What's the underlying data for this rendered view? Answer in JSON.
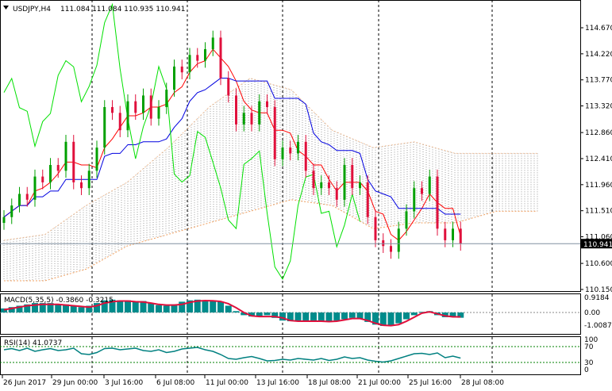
{
  "header": {
    "symbol": "USDJPY,H4",
    "ohlc": "111.084 111.084 110.935 110.941"
  },
  "colors": {
    "bull": "#00a000",
    "bear": "#e0103c",
    "tenkan": "#ff0000",
    "kijun": "#0000e0",
    "chikou": "#00e000",
    "cloud": "#999999",
    "span": "#f0a060",
    "macd_hist": "#008b8b",
    "macd_signal": "#e0103c",
    "rsi": "#008080",
    "level": "#008000"
  },
  "chart_data": [
    {
      "type": "candlestick",
      "title": "USDJPY,H4",
      "price_ticks": [
        "114.670",
        "114.220",
        "113.770",
        "113.320",
        "112.860",
        "112.410",
        "111.960",
        "111.510",
        "111.060",
        "110.600",
        "110.150"
      ],
      "ylim": [
        110.15,
        114.67
      ],
      "current_price": "110.941",
      "date_ticks": [
        "26 Jun 2017",
        "29 Jun 00:00",
        "3 Jul 16:00",
        "6 Jul 08:00",
        "11 Jul 00:00",
        "13 Jul 16:00",
        "18 Jul 08:00",
        "21 Jul 00:00",
        "25 Jul 16:00",
        "28 Jul 08:00"
      ],
      "close": [
        111.4,
        111.6,
        111.8,
        111.7,
        112.1,
        112.0,
        112.3,
        112.2,
        112.7,
        112.0,
        111.9,
        112.2,
        112.6,
        113.3,
        113.2,
        112.9,
        113.4,
        113.2,
        113.5,
        113.1,
        113.3,
        113.6,
        114.0,
        113.9,
        114.2,
        114.1,
        114.3,
        114.5,
        113.8,
        113.5,
        113.0,
        113.2,
        113.0,
        113.4,
        113.3,
        112.4,
        112.6,
        112.5,
        112.7,
        112.2,
        111.9,
        112.0,
        111.9,
        111.7,
        112.3,
        111.9,
        112.0,
        111.4,
        111.0,
        110.9,
        110.8,
        111.2,
        111.5,
        111.9,
        111.8,
        112.1,
        111.2,
        111.0,
        111.2,
        110.94
      ],
      "cloud_upper": [
        111.0,
        111.1,
        111.6,
        112.0,
        112.6,
        113.3,
        113.8,
        113.6,
        112.9,
        112.6,
        112.7,
        112.5,
        112.5,
        112.5
      ],
      "cloud_lower": [
        110.3,
        110.3,
        110.5,
        110.9,
        111.1,
        111.3,
        111.5,
        111.7,
        111.6,
        111.2,
        111.3,
        111.3,
        111.5,
        111.5
      ]
    },
    {
      "type": "bar",
      "title": "MACD(5,35,5) -0.3860 -0.3215",
      "y_ticks": [
        "0.9184",
        "0.00",
        "-1.0087"
      ],
      "ylim": [
        -1.0087,
        0.9184
      ],
      "histogram": [
        0.3,
        0.4,
        0.5,
        0.6,
        0.7,
        0.7,
        0.7,
        0.6,
        0.6,
        0.5,
        0.4,
        0.5,
        0.7,
        0.9,
        0.95,
        0.9,
        0.9,
        0.85,
        0.85,
        0.7,
        0.55,
        0.5,
        0.6,
        0.8,
        0.9,
        0.95,
        0.9,
        0.9,
        0.8,
        0.5,
        0.1,
        -0.2,
        -0.3,
        -0.3,
        -0.2,
        -0.4,
        -0.6,
        -0.65,
        -0.6,
        -0.6,
        -0.65,
        -0.7,
        -0.7,
        -0.6,
        -0.5,
        -0.4,
        -0.5,
        -0.7,
        -0.9,
        -1.0,
        -0.95,
        -0.8,
        -0.5,
        -0.2,
        0.05,
        0.1,
        -0.2,
        -0.35,
        -0.35,
        -0.39
      ],
      "signal": [
        0.2,
        0.3,
        0.4,
        0.5,
        0.55,
        0.6,
        0.6,
        0.6,
        0.55,
        0.5,
        0.45,
        0.4,
        0.5,
        0.7,
        0.8,
        0.85,
        0.85,
        0.8,
        0.78,
        0.7,
        0.6,
        0.55,
        0.55,
        0.6,
        0.75,
        0.85,
        0.88,
        0.87,
        0.82,
        0.65,
        0.35,
        0.0,
        -0.25,
        -0.3,
        -0.3,
        -0.3,
        -0.4,
        -0.6,
        -0.65,
        -0.65,
        -0.65,
        -0.65,
        -0.68,
        -0.65,
        -0.55,
        -0.45,
        -0.45,
        -0.6,
        -0.8,
        -0.95,
        -0.98,
        -0.9,
        -0.65,
        -0.35,
        -0.05,
        0.05,
        -0.1,
        -0.25,
        -0.32,
        -0.32
      ]
    },
    {
      "type": "line",
      "title": "RSI(14) 41.0737",
      "y_ticks": [
        "100",
        "70",
        "30",
        "0"
      ],
      "levels": [
        70,
        30
      ],
      "ylim": [
        0,
        100
      ],
      "values": [
        62,
        65,
        60,
        66,
        58,
        62,
        65,
        60,
        62,
        66,
        52,
        50,
        55,
        65,
        66,
        62,
        64,
        66,
        60,
        58,
        62,
        55,
        58,
        64,
        66,
        68,
        62,
        58,
        50,
        40,
        38,
        42,
        45,
        40,
        34,
        35,
        38,
        36,
        40,
        38,
        36,
        40,
        35,
        38,
        44,
        40,
        42,
        36,
        33,
        31,
        34,
        40,
        46,
        52,
        53,
        50,
        54,
        42,
        46,
        41.07
      ]
    }
  ]
}
